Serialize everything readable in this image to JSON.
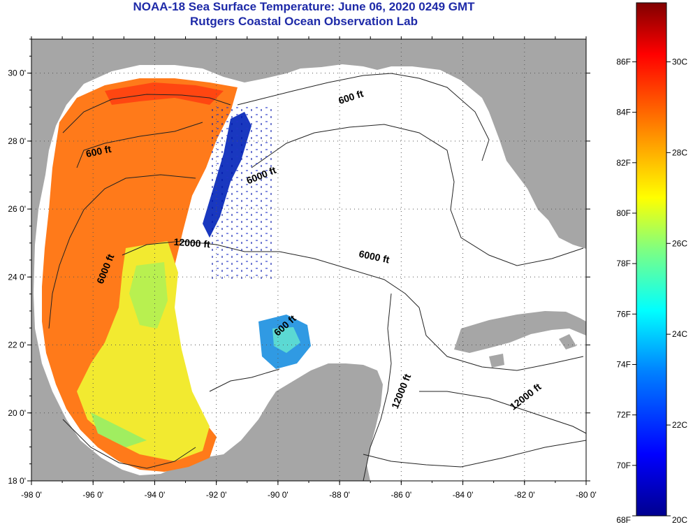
{
  "title": {
    "line1": "NOAA-18 Sea Surface Temperature:  June 06, 2020 0249 GMT",
    "line2": "Rutgers Coastal Ocean Observation Lab"
  },
  "map": {
    "region": "Gulf of Mexico",
    "lon_range": [
      -98,
      -80
    ],
    "lat_range": [
      18,
      31
    ],
    "gridlines": "dotted",
    "land_color": "#a6a6a6",
    "no_data_color": "#ffffff",
    "lon_ticks": [
      "-98 0'",
      "-96 0'",
      "-94 0'",
      "-92 0'",
      "-90 0'",
      "-88 0'",
      "-86 0'",
      "-84 0'",
      "-82 0'",
      "-80 0'"
    ],
    "lat_ticks": [
      "18 0'",
      "20 0'",
      "22 0'",
      "24 0'",
      "26 0'",
      "28 0'",
      "30 0'"
    ],
    "contour_labels": [
      {
        "text": "600 ft",
        "lon": -95.8,
        "lat": 27.6
      },
      {
        "text": "600 ft",
        "lon": -87.6,
        "lat": 29.2
      },
      {
        "text": "6000 ft",
        "lon": -90.5,
        "lat": 26.9
      },
      {
        "text": "6000 ft",
        "lon": -95.5,
        "lat": 24.2
      },
      {
        "text": "6000 ft",
        "lon": -86.9,
        "lat": 24.5
      },
      {
        "text": "12000 ft",
        "lon": -92.8,
        "lat": 24.9
      },
      {
        "text": "600 ft",
        "lon": -89.7,
        "lat": 22.5
      },
      {
        "text": "12000 ft",
        "lon": -85.9,
        "lat": 20.6
      },
      {
        "text": "12000 ft",
        "lon": -81.9,
        "lat": 20.4
      }
    ]
  },
  "colorbar": {
    "range_c": [
      20,
      31.3
    ],
    "f_labels": [
      "68F",
      "70F",
      "72F",
      "74F",
      "76F",
      "78F",
      "80F",
      "82F",
      "84F",
      "86F"
    ],
    "c_labels": [
      "20C",
      "22C",
      "24C",
      "26C",
      "28C",
      "30C"
    ],
    "colors": [
      "#00008f",
      "#0000ff",
      "#0080ff",
      "#00ffff",
      "#80ff80",
      "#ffff00",
      "#ff8000",
      "#ff0000",
      "#800000"
    ]
  },
  "legend": {
    "sst_units": "F / C"
  }
}
